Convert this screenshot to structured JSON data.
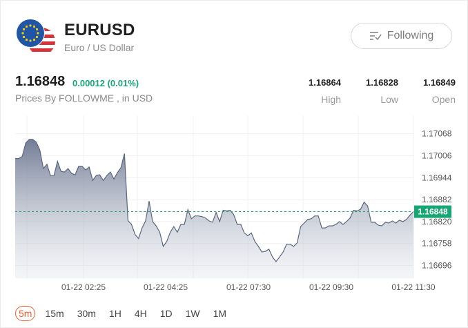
{
  "header": {
    "symbol": "EURUSD",
    "name": "Euro / US Dollar",
    "follow_label": "Following"
  },
  "quote": {
    "price": "1.16848",
    "change": "0.00012 (0.01%)",
    "source": "Prices By FOLLOWME , in USD"
  },
  "stats": [
    {
      "value": "1.16864",
      "label": "High"
    },
    {
      "value": "1.16828",
      "label": "Low"
    },
    {
      "value": "1.16849",
      "label": "Open"
    }
  ],
  "colors": {
    "accent_up": "#17a673",
    "active_tab": "#e8612c",
    "line": "#5b667c",
    "current_price": "#17a673"
  },
  "chart_data": {
    "type": "area",
    "title": "",
    "xlabel": "",
    "ylabel": "",
    "ylim": [
      1.1666,
      1.1712
    ],
    "y_ticks": [
      "1.17068",
      "1.17006",
      "1.16944",
      "1.16882",
      "1.16820",
      "1.16758",
      "1.16696"
    ],
    "x_ticks": [
      "01-22 02:25",
      "01-22 04:25",
      "01-22 07:30",
      "01-22 09:30",
      "01-22 11:30"
    ],
    "current_label": "1.16848",
    "current_value": 1.16848,
    "grid": true,
    "series": [
      {
        "values": [
          1.16998,
          1.16998,
          1.17004,
          1.17042,
          1.17052,
          1.17052,
          1.17044,
          1.17022,
          1.1697,
          1.16982,
          1.1695,
          1.1695,
          1.1699,
          1.16962,
          1.1696,
          1.1697,
          1.16956,
          1.16952,
          1.16976,
          1.16976,
          1.16966,
          1.16974,
          1.16936,
          1.1695,
          1.16952,
          1.16936,
          1.1695,
          1.1696,
          1.1694,
          1.16958,
          1.16972,
          1.17012,
          1.16823,
          1.16812,
          1.16784,
          1.16772,
          1.16802,
          1.16822,
          1.16878,
          1.1682,
          1.16808,
          1.1679,
          1.1675,
          1.16764,
          1.1679,
          1.16806,
          1.1679,
          1.16812,
          1.16812,
          1.16854,
          1.16828,
          1.16836,
          1.16836,
          1.16834,
          1.1683,
          1.16822,
          1.16818,
          1.16846,
          1.1682,
          1.16852,
          1.1685,
          1.16852,
          1.1684,
          1.16812,
          1.16812,
          1.16788,
          1.1678,
          1.16788,
          1.16764,
          1.1675,
          1.16734,
          1.16736,
          1.16742,
          1.1672,
          1.16707,
          1.1672,
          1.16734,
          1.16756,
          1.16756,
          1.1675,
          1.1676,
          1.16806,
          1.16816,
          1.16826,
          1.16828,
          1.16836,
          1.16836,
          1.16802,
          1.16802,
          1.16808,
          1.16808,
          1.16812,
          1.1682,
          1.16812,
          1.1682,
          1.1683,
          1.16852,
          1.1685,
          1.16855,
          1.16875,
          1.16864,
          1.16818,
          1.16818,
          1.1681,
          1.16808,
          1.16818,
          1.16816,
          1.16822,
          1.16816,
          1.16824,
          1.1682,
          1.16826,
          1.16838,
          1.16848
        ]
      }
    ]
  }
}
